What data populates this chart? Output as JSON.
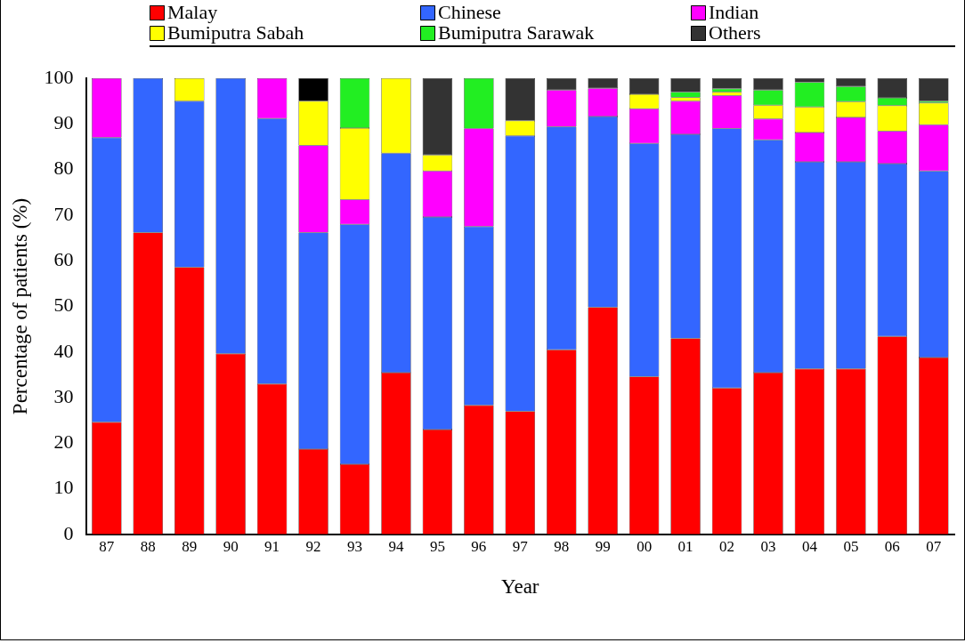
{
  "chart_data": {
    "type": "bar",
    "stacked": true,
    "xlabel": "Year",
    "ylabel": "Percentage of patients (%)",
    "categories": [
      "87",
      "88",
      "89",
      "90",
      "91",
      "92",
      "93",
      "94",
      "95",
      "96",
      "97",
      "98",
      "99",
      "00",
      "01",
      "02",
      "03",
      "04",
      "05",
      "06",
      "07"
    ],
    "ylim": [
      0,
      100
    ],
    "yticks": [
      0,
      10,
      20,
      30,
      40,
      50,
      60,
      70,
      80,
      90,
      100
    ],
    "grid": false,
    "legend": "top",
    "series": [
      {
        "name": "Malay",
        "color": "#ff0000",
        "values": [
          24.6,
          66.2,
          58.6,
          39.6,
          33,
          18.7,
          15.4,
          35.5,
          23,
          28.3,
          27,
          40.5,
          49.8,
          34.6,
          43,
          32.1,
          35.5,
          36.3,
          36.3,
          43.4,
          38.8
        ]
      },
      {
        "name": "Chinese",
        "color": "#3366ff",
        "values": [
          62.4,
          33.8,
          36.4,
          60.4,
          58.2,
          47.5,
          52.6,
          48.1,
          46.6,
          39.2,
          60.4,
          48.9,
          41.8,
          51.1,
          44.7,
          56.9,
          51,
          45.4,
          45.4,
          37.9,
          40.9
        ]
      },
      {
        "name": "Indian",
        "color": "#ff00ff",
        "values": [
          13,
          null,
          null,
          null,
          8.8,
          19.1,
          5.4,
          null,
          10.1,
          21.5,
          null,
          8,
          6.2,
          7.6,
          7.3,
          7.2,
          4.6,
          6.4,
          9.7,
          7.1,
          10.1
        ]
      },
      {
        "name": "Bumiputra Sabah",
        "color": "#ffff00",
        "values": [
          null,
          null,
          5,
          null,
          null,
          9.7,
          15.7,
          16.4,
          3.5,
          null,
          3.3,
          null,
          null,
          3.2,
          0.8,
          0.8,
          3,
          5.6,
          3.5,
          5.6,
          4.8
        ]
      },
      {
        "name": "Bumiputra Sarawak",
        "color": "#22ee22",
        "values": [
          null,
          null,
          null,
          null,
          null,
          null,
          10.9,
          null,
          null,
          11,
          null,
          null,
          null,
          null,
          1.2,
          0.7,
          3.3,
          5.4,
          3.3,
          1.7,
          0.4
        ]
      },
      {
        "name": "Others",
        "color": "#333333",
        "colors": [
          "#333333",
          "#333333",
          "#333333",
          "#333333",
          "#333333",
          "#000000",
          "#333333",
          "#333333",
          "#333333",
          "#333333",
          "#333333",
          "#333333",
          "#333333",
          "#333333",
          "#333333",
          "#333333",
          "#333333",
          "#333333",
          "#333333",
          "#333333",
          "#333333"
        ],
        "values": [
          null,
          null,
          null,
          null,
          null,
          5,
          null,
          null,
          16.8,
          null,
          9.3,
          2.6,
          2.2,
          3.5,
          3,
          2.3,
          2.6,
          0.9,
          1.8,
          4.3,
          5
        ]
      }
    ]
  }
}
